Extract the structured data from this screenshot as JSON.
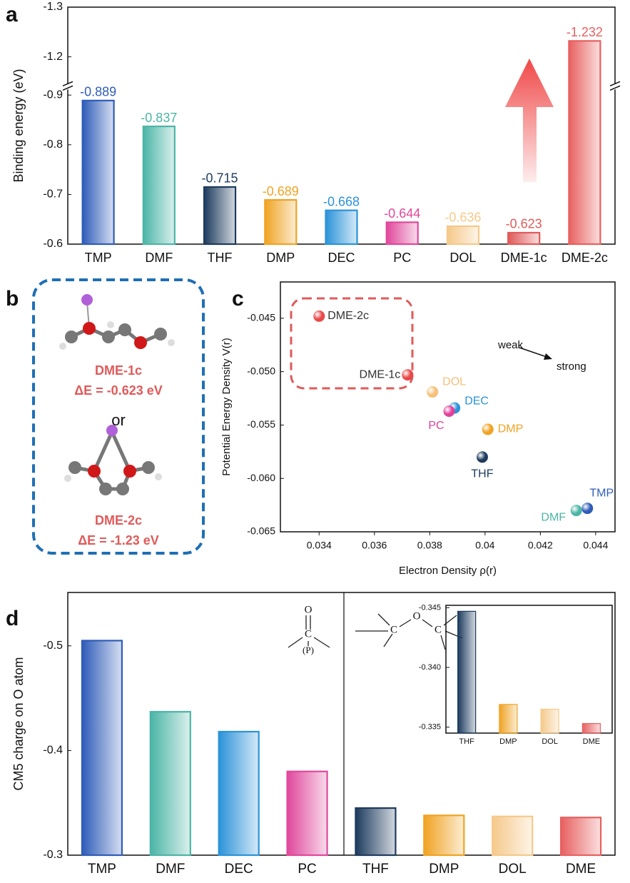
{
  "chart_data": [
    {
      "panel": "a",
      "type": "bar",
      "ylabel": "Binding energy (eV)",
      "categories": [
        "TMP",
        "DMF",
        "THF",
        "DMP",
        "DEC",
        "PC",
        "DOL",
        "DME-1c",
        "DME-2c"
      ],
      "values": [
        -0.889,
        -0.837,
        -0.715,
        -0.689,
        -0.668,
        -0.644,
        -0.636,
        -0.623,
        -1.232
      ],
      "colors": [
        "#2f5cb8",
        "#4bb5a6",
        "#1d3b5e",
        "#f0a323",
        "#2b93d8",
        "#e0489c",
        "#f5c98a",
        "#e05a5a",
        "#e86060"
      ],
      "ylim": [
        -0.6,
        -1.3
      ],
      "ybreak": [
        -0.917,
        -1.14
      ],
      "yticks": [
        -1.3,
        -1.2,
        -0.9,
        -0.8,
        -0.7,
        -0.6
      ],
      "grid": false
    },
    {
      "panel": "c",
      "type": "scatter",
      "xlabel": "Electron Density ρ(r)",
      "ylabel": "Potential Energy Density V(r)",
      "labels": [
        "DME-2c",
        "DME-1c",
        "DOL",
        "DEC",
        "PC",
        "DMP",
        "THF",
        "TMP",
        "DMF"
      ],
      "x": [
        0.034,
        0.0372,
        0.0381,
        0.0389,
        0.0387,
        0.0401,
        0.0399,
        0.0437,
        0.0433
      ],
      "y": [
        -0.0448,
        -0.0503,
        -0.0519,
        -0.0534,
        -0.0537,
        -0.0554,
        -0.058,
        -0.0628,
        -0.063
      ],
      "colors": [
        "#e84848",
        "#e84848",
        "#f5c07a",
        "#2b93d8",
        "#e0409a",
        "#f0a323",
        "#1d3b5e",
        "#2f5cb8",
        "#4bb5a6"
      ],
      "label_colors": [
        "#333333",
        "#333333",
        "#f5c07a",
        "#2b93d8",
        "#e0409a",
        "#f0a323",
        "#1d3b5e",
        "#2f5cb8",
        "#4bb5a6"
      ],
      "xlim": [
        0.0326,
        0.0447
      ],
      "xticks": [
        0.034,
        0.036,
        0.038,
        0.04,
        0.042,
        0.044
      ],
      "ylim": [
        -0.065,
        -0.0416
      ],
      "yticks": [
        -0.045,
        {
          "value": -0.05,
          "label": "-0.050"
        },
        -0.055,
        {
          "value": -0.06,
          "label": "-0.060"
        },
        -0.065
      ],
      "annotations": [
        "weak",
        "strong"
      ],
      "grid": false
    },
    {
      "panel": "d",
      "type": "bar",
      "ylabel": "CM5 charge on O atom",
      "categories": [
        "TMP",
        "DMF",
        "DEC",
        "PC",
        "THF",
        "DMP",
        "DOL",
        "DME"
      ],
      "values": [
        -0.505,
        -0.437,
        -0.418,
        -0.38,
        -0.345,
        -0.338,
        -0.337,
        -0.336
      ],
      "colors": [
        "#2f5cb8",
        "#4bb5a6",
        "#2b93d8",
        "#e0489c",
        "#1d3b5e",
        "#f0a323",
        "#f5c98a",
        "#e86060"
      ],
      "ylim": [
        -0.3,
        -0.551
      ],
      "yticks": [
        -0.5,
        -0.4,
        -0.3
      ],
      "annotations": [
        "O",
        "C",
        "(P)",
        "C",
        "O",
        "C"
      ],
      "grid": false
    },
    {
      "type": "bar",
      "categories": [
        "THF",
        "DMP",
        "DOL",
        "DME"
      ],
      "values": [
        -0.3447,
        -0.3369,
        -0.3365,
        -0.3353
      ],
      "colors": [
        "#1d3b5e",
        "#f0a323",
        "#f5c98a",
        "#e86060"
      ],
      "ylim": [
        -0.3345,
        -0.3452
      ],
      "yticks": [
        -0.345,
        {
          "value": -0.34,
          "label": "-0.340"
        },
        -0.335
      ],
      "grid": false
    }
  ],
  "panel_b": {
    "panel": "b",
    "items": [
      {
        "name": "DME-1c",
        "energy": "ΔE = -0.623 eV"
      },
      {
        "name": "DME-2c",
        "energy": "ΔE = -1.23 eV"
      }
    ],
    "separator": "or"
  }
}
